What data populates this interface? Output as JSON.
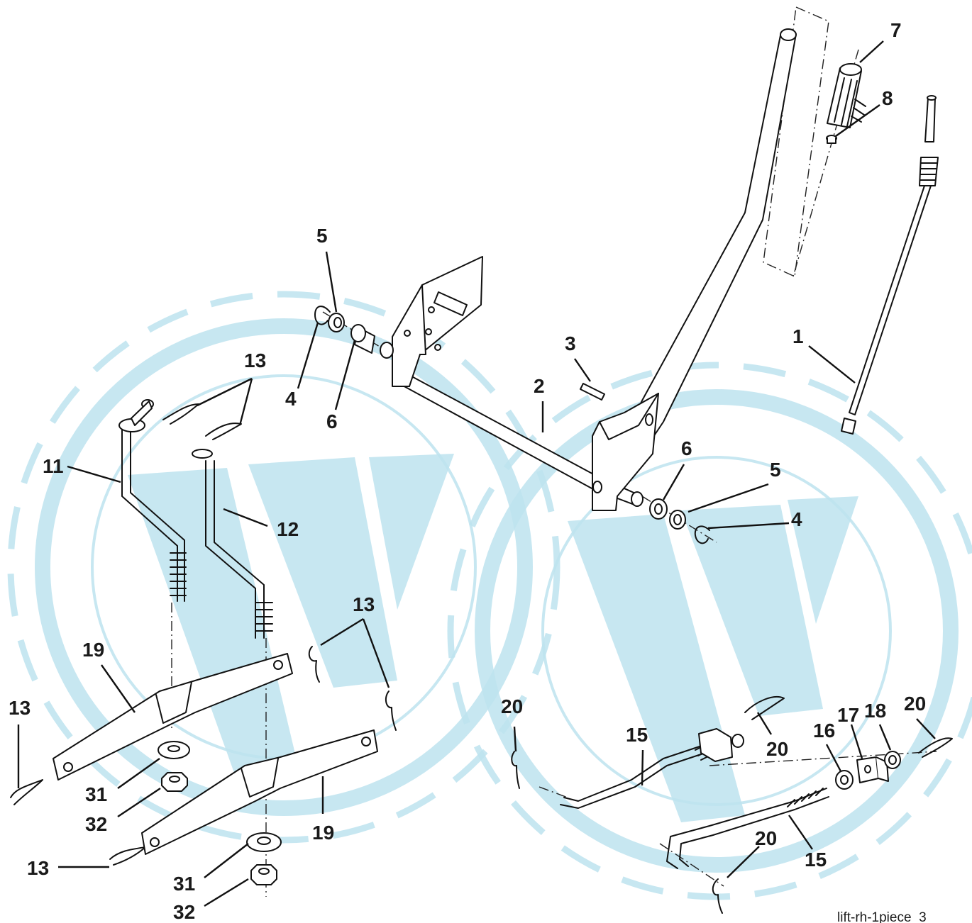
{
  "figure_id": "lift-rh-1piece_3",
  "callouts": [
    {
      "id": "c7a",
      "text": "7"
    },
    {
      "id": "c8a",
      "text": "8"
    },
    {
      "id": "c5a",
      "text": "5"
    },
    {
      "id": "c4a",
      "text": "4"
    },
    {
      "id": "c6a",
      "text": "6"
    },
    {
      "id": "c13a",
      "text": "13"
    },
    {
      "id": "c3a",
      "text": "3"
    },
    {
      "id": "c2a",
      "text": "2"
    },
    {
      "id": "c1a",
      "text": "1"
    },
    {
      "id": "c11a",
      "text": "11"
    },
    {
      "id": "c12a",
      "text": "12"
    },
    {
      "id": "c6b",
      "text": "6"
    },
    {
      "id": "c5b",
      "text": "5"
    },
    {
      "id": "c4b",
      "text": "4"
    },
    {
      "id": "c13b",
      "text": "13"
    },
    {
      "id": "c19a",
      "text": "19"
    },
    {
      "id": "c13c",
      "text": "13"
    },
    {
      "id": "c31a",
      "text": "31"
    },
    {
      "id": "c32a",
      "text": "32"
    },
    {
      "id": "c19b",
      "text": "19"
    },
    {
      "id": "c13d",
      "text": "13"
    },
    {
      "id": "c31b",
      "text": "31"
    },
    {
      "id": "c32b",
      "text": "32"
    },
    {
      "id": "c20a",
      "text": "20"
    },
    {
      "id": "c15a",
      "text": "15"
    },
    {
      "id": "c20b",
      "text": "20"
    },
    {
      "id": "c17a",
      "text": "17"
    },
    {
      "id": "c18a",
      "text": "18"
    },
    {
      "id": "c20c",
      "text": "20"
    },
    {
      "id": "c16a",
      "text": "16"
    },
    {
      "id": "c20d",
      "text": "20"
    },
    {
      "id": "c15b",
      "text": "15"
    }
  ]
}
